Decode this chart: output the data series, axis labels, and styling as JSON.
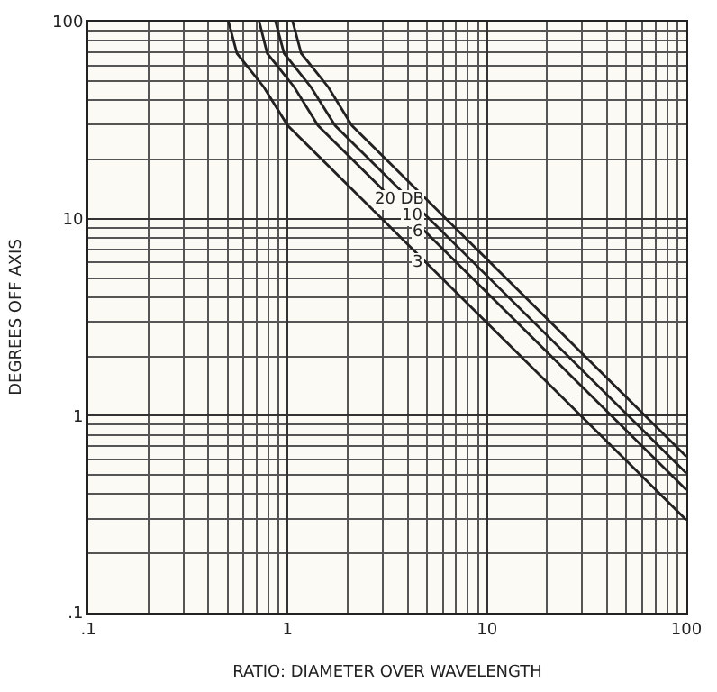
{
  "chart_data": {
    "type": "line",
    "xlabel": "RATIO: DIAMETER OVER WAVELENGTH",
    "ylabel": "DEGREES OFF AXIS",
    "log": "xy",
    "grid": true,
    "legend": false,
    "marker": "none",
    "line_style": "solid",
    "xlim": [
      0.1,
      100
    ],
    "ylim": [
      0.1,
      100
    ],
    "xticks": [
      {
        "value": 0.1,
        "label": ".1"
      },
      1,
      10,
      100
    ],
    "yticks": [
      {
        "value": 0.1,
        "label": ".1"
      },
      1,
      10,
      100
    ],
    "series": [
      {
        "name": "20 DB",
        "color": "#222222",
        "x": [
          1.06,
          1.17,
          1.6,
          2.1,
          100
        ],
        "values": [
          100,
          69,
          46.5,
          29.7,
          0.62
        ]
      },
      {
        "name": "10",
        "color": "#222222",
        "x": [
          0.87,
          0.96,
          1.31,
          1.73,
          100
        ],
        "values": [
          100,
          69,
          46.5,
          29.7,
          0.51
        ]
      },
      {
        "name": "6",
        "color": "#222222",
        "x": [
          0.72,
          0.79,
          1.08,
          1.42,
          100
        ],
        "values": [
          100,
          69,
          46.5,
          29.7,
          0.42
        ]
      },
      {
        "name": "3",
        "color": "#222222",
        "x": [
          0.505,
          0.557,
          0.76,
          1,
          100
        ],
        "values": [
          100,
          69,
          46.5,
          29.7,
          0.295
        ]
      }
    ]
  }
}
